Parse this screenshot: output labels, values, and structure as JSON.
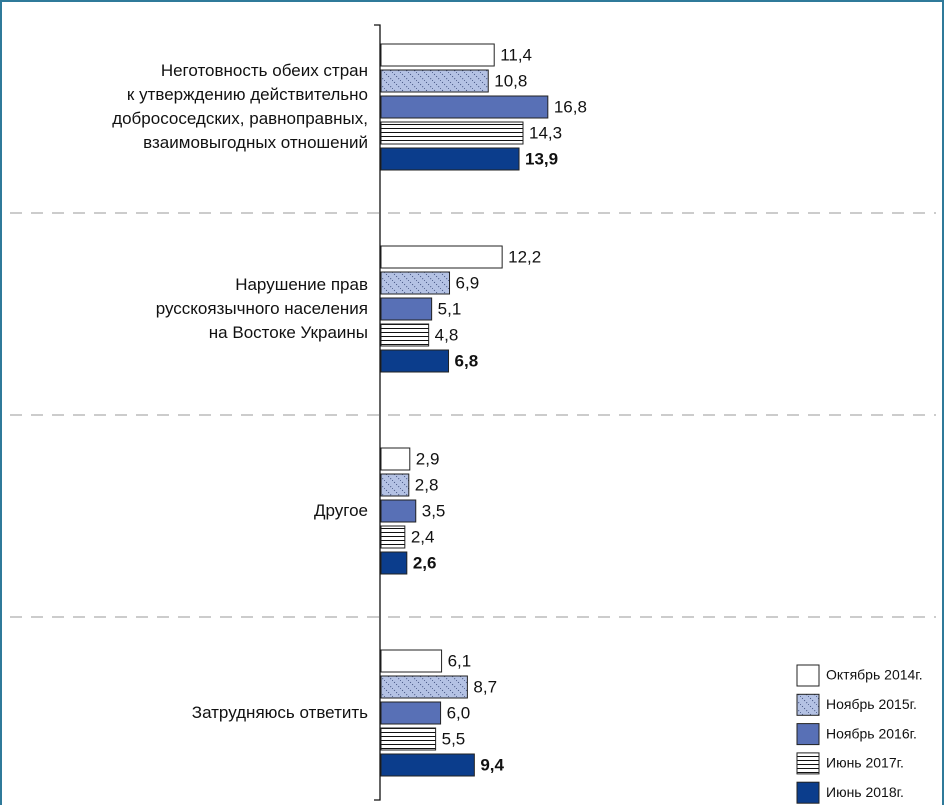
{
  "chart_data": {
    "type": "hbar",
    "categories": [
      "Неготовность обеих стран\nк утверждению действительно\nдобрососедских, равноправных,\nвзаимовыгодных отношений",
      "Нарушение прав\nрусскоязычного населения\nна Востоке Украины",
      "Другое",
      "Затрудняюсь ответить"
    ],
    "series": [
      {
        "name": "Октябрь 2014г.",
        "color": "#ffffff",
        "pattern": "solid",
        "values": [
          11.4,
          12.2,
          2.9,
          6.1
        ],
        "value_labels": [
          "11,4",
          "12,2",
          "2,9",
          "6,1"
        ]
      },
      {
        "name": "Ноябрь 2015г.",
        "color": "#b4c2e4",
        "pattern": "diagonal",
        "values": [
          10.8,
          6.9,
          2.8,
          8.7
        ],
        "value_labels": [
          "10,8",
          "6,9",
          "2,8",
          "8,7"
        ]
      },
      {
        "name": "Ноябрь 2016г.",
        "color": "#5870b6",
        "pattern": "solid",
        "values": [
          16.8,
          5.1,
          3.5,
          6.0
        ],
        "value_labels": [
          "16,8",
          "5,1",
          "3,5",
          "6,0"
        ]
      },
      {
        "name": "Июнь 2017г.",
        "color": "#ffffff",
        "pattern": "horizontal",
        "values": [
          14.3,
          4.8,
          2.4,
          5.5
        ],
        "value_labels": [
          "14,3",
          "4,8",
          "2,4",
          "5,5"
        ]
      },
      {
        "name": "Июнь 2018г.",
        "color": "#0b3d8c",
        "pattern": "solid",
        "bold": true,
        "values": [
          13.9,
          6.8,
          2.6,
          9.4
        ],
        "value_labels": [
          "13,9",
          "6,8",
          "2,6",
          "9,4"
        ]
      }
    ],
    "legend": "bottom-right"
  }
}
